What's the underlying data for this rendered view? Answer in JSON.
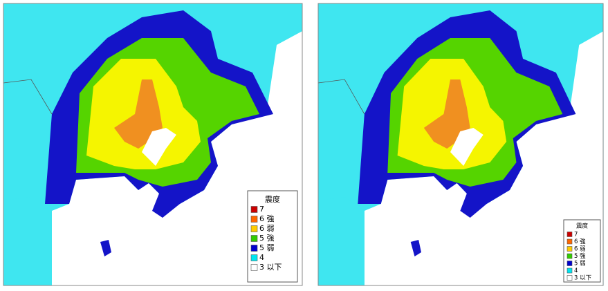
{
  "maps": [
    {
      "legend": {
        "title": "震度",
        "items": [
          {
            "label": "7",
            "color": "#cc0000"
          },
          {
            "label": "6 強",
            "color": "#ff6600"
          },
          {
            "label": "6 弱",
            "color": "#ffcc00"
          },
          {
            "label": "5 強",
            "color": "#33cc00"
          },
          {
            "label": "5 弱",
            "color": "#0000cc"
          },
          {
            "label": "4",
            "color": "#00e5f0"
          },
          {
            "label": "3 以下",
            "color": "#ffffff"
          }
        ]
      }
    },
    {
      "legend": {
        "title": "震度",
        "items": [
          {
            "label": "7",
            "color": "#cc0000"
          },
          {
            "label": "6 強",
            "color": "#ff6600"
          },
          {
            "label": "6 弱",
            "color": "#ffcc00"
          },
          {
            "label": "5 強",
            "color": "#33cc00"
          },
          {
            "label": "5 弱",
            "color": "#0000cc"
          },
          {
            "label": "4",
            "color": "#00e5f0"
          },
          {
            "label": "3 以下",
            "color": "#ffffff"
          }
        ]
      }
    }
  ]
}
